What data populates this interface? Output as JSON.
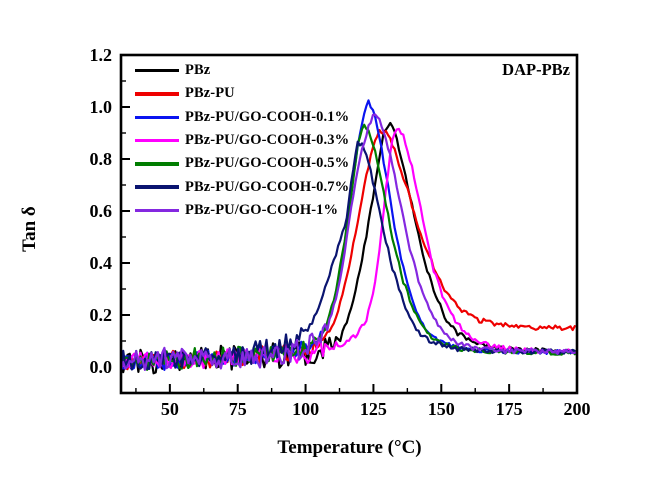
{
  "figure": {
    "background": "#ffffff",
    "annotation": "DAP-PBz",
    "frame_color": "#000000"
  },
  "chart_data": {
    "type": "line",
    "title": "",
    "xlabel": "Temperature (°C)",
    "ylabel": "Tan δ",
    "xlim": [
      32,
      200
    ],
    "ylim": [
      -0.1,
      1.2
    ],
    "xticks": [
      50,
      75,
      100,
      125,
      150,
      175,
      200
    ],
    "yticks": [
      "0.0",
      "0.2",
      "0.4",
      "0.6",
      "0.8",
      "1.0",
      "1.2"
    ],
    "ytick_values": [
      0.0,
      0.2,
      0.4,
      0.6,
      0.8,
      1.0,
      1.2
    ],
    "x_minor_step": 12.5,
    "y_minor_step": 0.1,
    "grid": false,
    "legend_position": "top-left",
    "series": [
      {
        "name": "PBz",
        "color": "#000000",
        "peak": {
          "temperature": 130,
          "tan_delta": 0.94
        },
        "noise": {
          "amp": 0.045,
          "until": 113
        },
        "points": [
          [
            32,
            0.02
          ],
          [
            45,
            0.025
          ],
          [
            60,
            0.03
          ],
          [
            75,
            0.038
          ],
          [
            90,
            0.048
          ],
          [
            100,
            0.055
          ],
          [
            106,
            0.07
          ],
          [
            110,
            0.09
          ],
          [
            113,
            0.13
          ],
          [
            116,
            0.2
          ],
          [
            119,
            0.32
          ],
          [
            122,
            0.48
          ],
          [
            125,
            0.66
          ],
          [
            127,
            0.8
          ],
          [
            129,
            0.91
          ],
          [
            131,
            0.94
          ],
          [
            133,
            0.9
          ],
          [
            136,
            0.78
          ],
          [
            140,
            0.58
          ],
          [
            144,
            0.4
          ],
          [
            148,
            0.27
          ],
          [
            152,
            0.18
          ],
          [
            156,
            0.13
          ],
          [
            162,
            0.095
          ],
          [
            170,
            0.075
          ],
          [
            180,
            0.065
          ],
          [
            200,
            0.06
          ]
        ]
      },
      {
        "name": "PBz-PU",
        "color": "#ee0000",
        "peak": {
          "temperature": 127,
          "tan_delta": 0.91
        },
        "noise": {
          "amp": 0.03,
          "until": 107
        },
        "points": [
          [
            32,
            0.02
          ],
          [
            45,
            0.025
          ],
          [
            60,
            0.03
          ],
          [
            75,
            0.038
          ],
          [
            90,
            0.048
          ],
          [
            100,
            0.06
          ],
          [
            104,
            0.08
          ],
          [
            107,
            0.11
          ],
          [
            110,
            0.16
          ],
          [
            113,
            0.25
          ],
          [
            116,
            0.38
          ],
          [
            119,
            0.55
          ],
          [
            122,
            0.72
          ],
          [
            125,
            0.85
          ],
          [
            127,
            0.91
          ],
          [
            130,
            0.9
          ],
          [
            133,
            0.83
          ],
          [
            137,
            0.7
          ],
          [
            141,
            0.56
          ],
          [
            145,
            0.44
          ],
          [
            149,
            0.34
          ],
          [
            153,
            0.27
          ],
          [
            158,
            0.215
          ],
          [
            164,
            0.18
          ],
          [
            172,
            0.162
          ],
          [
            182,
            0.152
          ],
          [
            200,
            0.15
          ]
        ]
      },
      {
        "name": "PBz-PU/GO-COOH-0.1%",
        "color": "#0a14f0",
        "peak": {
          "temperature": 123,
          "tan_delta": 1.02
        },
        "noise": {
          "amp": 0.035,
          "until": 106
        },
        "points": [
          [
            32,
            0.02
          ],
          [
            45,
            0.025
          ],
          [
            60,
            0.03
          ],
          [
            75,
            0.04
          ],
          [
            90,
            0.05
          ],
          [
            100,
            0.07
          ],
          [
            104,
            0.1
          ],
          [
            107,
            0.14
          ],
          [
            110,
            0.22
          ],
          [
            113,
            0.38
          ],
          [
            116,
            0.6
          ],
          [
            118,
            0.76
          ],
          [
            120,
            0.9
          ],
          [
            122,
            1.0
          ],
          [
            123,
            1.02
          ],
          [
            125,
            0.99
          ],
          [
            127,
            0.9
          ],
          [
            130,
            0.72
          ],
          [
            133,
            0.53
          ],
          [
            136,
            0.38
          ],
          [
            140,
            0.24
          ],
          [
            144,
            0.15
          ],
          [
            149,
            0.1
          ],
          [
            155,
            0.075
          ],
          [
            165,
            0.062
          ],
          [
            200,
            0.056
          ]
        ]
      },
      {
        "name": "PBz-PU/GO-COOH-0.3%",
        "color": "#ff00ff",
        "peak": {
          "temperature": 134,
          "tan_delta": 0.92
        },
        "noise": {
          "amp": 0.035,
          "until": 113
        },
        "points": [
          [
            32,
            0.02
          ],
          [
            45,
            0.025
          ],
          [
            60,
            0.03
          ],
          [
            80,
            0.04
          ],
          [
            95,
            0.05
          ],
          [
            105,
            0.06
          ],
          [
            110,
            0.07
          ],
          [
            115,
            0.09
          ],
          [
            119,
            0.13
          ],
          [
            122,
            0.17
          ],
          [
            125,
            0.28
          ],
          [
            128,
            0.52
          ],
          [
            130,
            0.72
          ],
          [
            132,
            0.88
          ],
          [
            134,
            0.92
          ],
          [
            136,
            0.89
          ],
          [
            139,
            0.78
          ],
          [
            143,
            0.58
          ],
          [
            147,
            0.38
          ],
          [
            151,
            0.26
          ],
          [
            155,
            0.18
          ],
          [
            160,
            0.12
          ],
          [
            168,
            0.08
          ],
          [
            180,
            0.064
          ],
          [
            200,
            0.058
          ]
        ]
      },
      {
        "name": "PBz-PU/GO-COOH-0.5%",
        "color": "#007d00",
        "peak": {
          "temperature": 121,
          "tan_delta": 0.93
        },
        "noise": {
          "amp": 0.035,
          "until": 104
        },
        "points": [
          [
            32,
            0.02
          ],
          [
            45,
            0.025
          ],
          [
            60,
            0.03
          ],
          [
            75,
            0.04
          ],
          [
            90,
            0.05
          ],
          [
            98,
            0.06
          ],
          [
            102,
            0.08
          ],
          [
            105,
            0.11
          ],
          [
            108,
            0.17
          ],
          [
            111,
            0.28
          ],
          [
            114,
            0.46
          ],
          [
            117,
            0.68
          ],
          [
            119,
            0.84
          ],
          [
            121,
            0.93
          ],
          [
            123,
            0.91
          ],
          [
            126,
            0.81
          ],
          [
            129,
            0.66
          ],
          [
            132,
            0.5
          ],
          [
            136,
            0.33
          ],
          [
            140,
            0.21
          ],
          [
            145,
            0.13
          ],
          [
            150,
            0.09
          ],
          [
            158,
            0.068
          ],
          [
            170,
            0.058
          ],
          [
            200,
            0.055
          ]
        ]
      },
      {
        "name": "PBz-PU/GO-COOH-0.7%",
        "color": "#0a1470",
        "peak": {
          "temperature": 119,
          "tan_delta": 0.87
        },
        "noise": {
          "amp": 0.038,
          "until": 100
        },
        "points": [
          [
            32,
            0.022
          ],
          [
            45,
            0.03
          ],
          [
            60,
            0.04
          ],
          [
            75,
            0.05
          ],
          [
            85,
            0.065
          ],
          [
            92,
            0.085
          ],
          [
            97,
            0.11
          ],
          [
            100,
            0.14
          ],
          [
            104,
            0.21
          ],
          [
            108,
            0.33
          ],
          [
            112,
            0.46
          ],
          [
            115,
            0.56
          ],
          [
            117,
            0.72
          ],
          [
            119,
            0.86
          ],
          [
            121,
            0.86
          ],
          [
            124,
            0.75
          ],
          [
            128,
            0.56
          ],
          [
            132,
            0.38
          ],
          [
            136,
            0.25
          ],
          [
            141,
            0.14
          ],
          [
            146,
            0.095
          ],
          [
            155,
            0.07
          ],
          [
            170,
            0.062
          ],
          [
            200,
            0.058
          ]
        ]
      },
      {
        "name": "PBz-PU/GO-COOH-1%",
        "color": "#8428e0",
        "peak": {
          "temperature": 126,
          "tan_delta": 0.97
        },
        "noise": {
          "amp": 0.04,
          "until": 108
        },
        "points": [
          [
            32,
            0.02
          ],
          [
            45,
            0.025
          ],
          [
            60,
            0.03
          ],
          [
            80,
            0.04
          ],
          [
            92,
            0.05
          ],
          [
            100,
            0.07
          ],
          [
            105,
            0.11
          ],
          [
            108,
            0.16
          ],
          [
            111,
            0.25
          ],
          [
            114,
            0.42
          ],
          [
            117,
            0.62
          ],
          [
            120,
            0.8
          ],
          [
            123,
            0.92
          ],
          [
            125,
            0.965
          ],
          [
            127,
            0.96
          ],
          [
            129,
            0.9
          ],
          [
            132,
            0.78
          ],
          [
            135,
            0.62
          ],
          [
            138,
            0.47
          ],
          [
            142,
            0.32
          ],
          [
            146,
            0.21
          ],
          [
            150,
            0.14
          ],
          [
            155,
            0.095
          ],
          [
            162,
            0.072
          ],
          [
            172,
            0.062
          ],
          [
            200,
            0.058
          ]
        ]
      }
    ]
  }
}
